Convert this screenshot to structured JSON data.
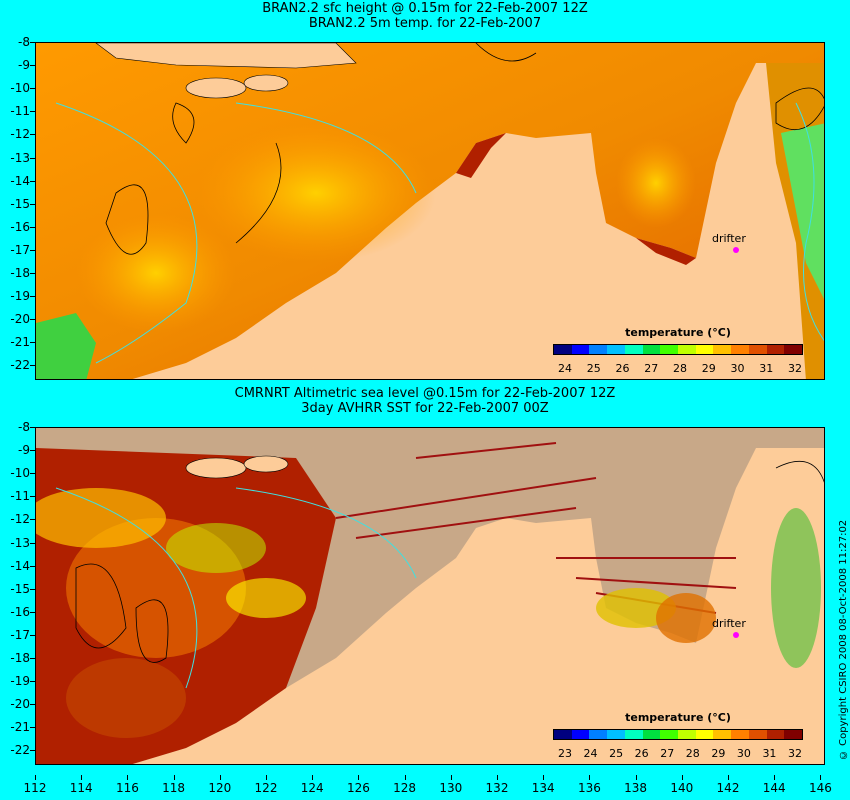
{
  "top_panel": {
    "title_line1": "BRAN2.2 sfc height @ 0.15m for 22-Feb-2007 12Z",
    "title_line2": "BRAN2.2 5m temp. for 22-Feb-2007",
    "colorbar_title": "temperature (°C)",
    "colorbar_ticks": [
      "24",
      "25",
      "26",
      "27",
      "28",
      "29",
      "30",
      "31",
      "32"
    ],
    "drifter_label": "drifter"
  },
  "bottom_panel": {
    "title_line1": "CMRNRT Altimetric sea level  @0.15m  for 22-Feb-2007 12Z",
    "title_line2": "3day AVHRR SST for 22-Feb-2007 00Z",
    "colorbar_title": "temperature (°C)",
    "colorbar_ticks": [
      "23",
      "24",
      "25",
      "26",
      "27",
      "28",
      "29",
      "30",
      "31",
      "32"
    ],
    "drifter_label": "drifter"
  },
  "lat_labels": [
    "-8",
    "-9",
    "-10",
    "-11",
    "-12",
    "-13",
    "-14",
    "-15",
    "-16",
    "-17",
    "-18",
    "-19",
    "-20",
    "-21",
    "-22"
  ],
  "lon_labels": [
    "112",
    "114",
    "116",
    "118",
    "120",
    "122",
    "124",
    "126",
    "128",
    "130",
    "132",
    "134",
    "136",
    "138",
    "140",
    "142",
    "144",
    "146"
  ],
  "copyright": "© Copyright CSIRO 2008   08-Oct-2008 11:27:02",
  "colors": {
    "background": "#00ffff",
    "land": "#fdcc99",
    "cloud_no_data": "#c8a888",
    "colorbar": [
      "#000080",
      "#0000ff",
      "#0080ff",
      "#00c0ff",
      "#00ffc0",
      "#00e040",
      "#40ff00",
      "#c0ff00",
      "#ffff00",
      "#ffc000",
      "#ff8000",
      "#e05000",
      "#b02000",
      "#800000"
    ]
  }
}
